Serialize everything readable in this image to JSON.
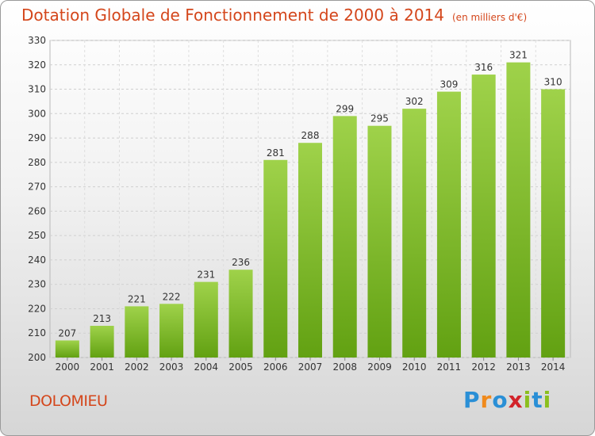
{
  "chart_data": {
    "type": "bar",
    "title": "Dotation Globale de Fonctionnement de 2000 à 2014",
    "subtitle": "(en milliers d'€)",
    "categories": [
      "2000",
      "2001",
      "2002",
      "2003",
      "2004",
      "2005",
      "2006",
      "2007",
      "2008",
      "2009",
      "2010",
      "2011",
      "2012",
      "2013",
      "2014"
    ],
    "values": [
      207,
      213,
      221,
      222,
      231,
      236,
      281,
      288,
      299,
      295,
      302,
      309,
      316,
      321,
      310
    ],
    "ylim": [
      200,
      330
    ],
    "yticks": [
      200,
      210,
      220,
      230,
      240,
      250,
      260,
      270,
      280,
      290,
      300,
      310,
      320,
      330
    ],
    "grid": true,
    "bar_color": "#7cba2a",
    "label": "DOLOMIEU",
    "brand": "Proxiti",
    "brand_colors": [
      "#2a8fd6",
      "#f08a1c",
      "#8bbf1e",
      "#d2232a"
    ]
  }
}
